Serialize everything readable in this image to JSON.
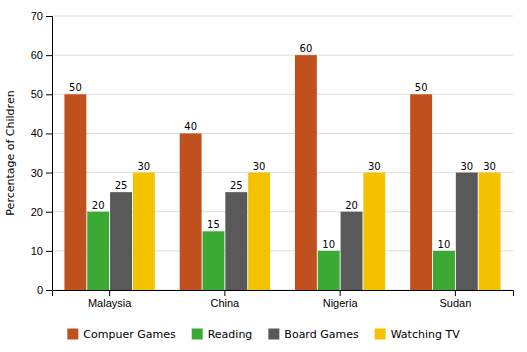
{
  "chart_data": {
    "type": "bar",
    "ylabel": "Percentage of Children",
    "categories": [
      "Malaysia",
      "China",
      "Nigeria",
      "Sudan"
    ],
    "series": [
      {
        "name": "Compuer Games",
        "color": "#C0501E",
        "values": [
          50,
          40,
          60,
          50
        ]
      },
      {
        "name": "Reading",
        "color": "#3AAA35",
        "values": [
          20,
          15,
          10,
          10
        ]
      },
      {
        "name": "Board Games",
        "color": "#595959",
        "values": [
          25,
          25,
          20,
          30
        ]
      },
      {
        "name": "Watching TV",
        "color": "#F5C200",
        "values": [
          30,
          30,
          30,
          30
        ]
      }
    ],
    "ylim": [
      0,
      70
    ],
    "yticks": [
      0,
      10,
      20,
      30,
      40,
      50,
      60,
      70
    ],
    "grid": true,
    "data_labels": true,
    "legend": "bottom"
  }
}
